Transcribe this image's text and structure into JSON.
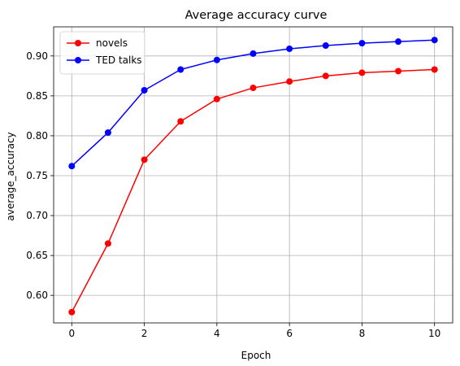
{
  "chart_data": {
    "type": "line",
    "title": "Average accuracy curve",
    "xlabel": "Epoch",
    "ylabel": "average_accuracy",
    "x": [
      0,
      1,
      2,
      3,
      4,
      5,
      6,
      7,
      8,
      9,
      10
    ],
    "xlim": [
      -0.5,
      10.5
    ],
    "ylim": [
      0.5655,
      0.9365
    ],
    "xticks": [
      0,
      2,
      4,
      6,
      8,
      10
    ],
    "yticks": [
      0.6,
      0.65,
      0.7,
      0.75,
      0.8,
      0.85,
      0.9
    ],
    "ytick_labels": [
      "0.60",
      "0.65",
      "0.70",
      "0.75",
      "0.80",
      "0.85",
      "0.90"
    ],
    "grid": true,
    "legend_position": "top-left",
    "series": [
      {
        "name": "novels",
        "color": "#ff0000",
        "marker": "circle",
        "values": [
          0.579,
          0.665,
          0.77,
          0.818,
          0.846,
          0.86,
          0.868,
          0.875,
          0.879,
          0.881,
          0.883
        ]
      },
      {
        "name": "TED talks",
        "color": "#0000ff",
        "marker": "circle",
        "values": [
          0.762,
          0.804,
          0.857,
          0.883,
          0.895,
          0.903,
          0.909,
          0.913,
          0.916,
          0.918,
          0.92
        ]
      }
    ]
  }
}
